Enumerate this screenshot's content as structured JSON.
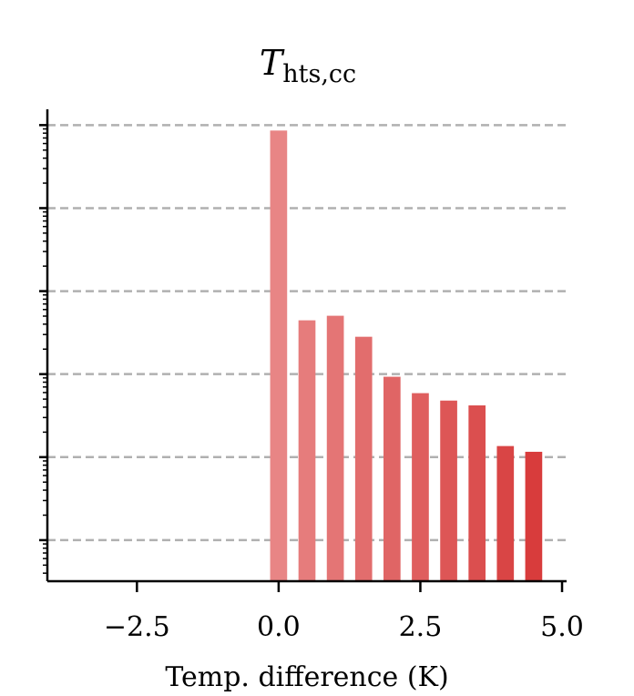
{
  "chart_data": {
    "type": "bar",
    "title": "T",
    "title_subscript": "hts,cc",
    "x_label": "Temp. difference (K)",
    "x": [
      0,
      0.5,
      1,
      1.5,
      2,
      2.5,
      3,
      3.5,
      4,
      4.5
    ],
    "values": [
      86000,
      445,
      505,
      282,
      93,
      59,
      48,
      42,
      13.6,
      11.6
    ],
    "colors": [
      "#e88585",
      "#e67c7c",
      "#e47575",
      "#e26d6d",
      "#e06565",
      "#df5e5e",
      "#dd5656",
      "#db4f4f",
      "#d94545",
      "#d83c3c"
    ],
    "xlim": [
      -4.08,
      5.08
    ],
    "xticks": [
      {
        "value": -2.5,
        "label": "−2.5"
      },
      {
        "value": 0,
        "label": "0.0"
      },
      2.5,
      {
        "value": 5,
        "label": "5.0"
      }
    ],
    "ylim": [
      0.32,
      155000
    ],
    "ylog": true,
    "yticks": [
      1,
      10,
      100,
      1000,
      10000,
      100000
    ],
    "grid": true
  }
}
